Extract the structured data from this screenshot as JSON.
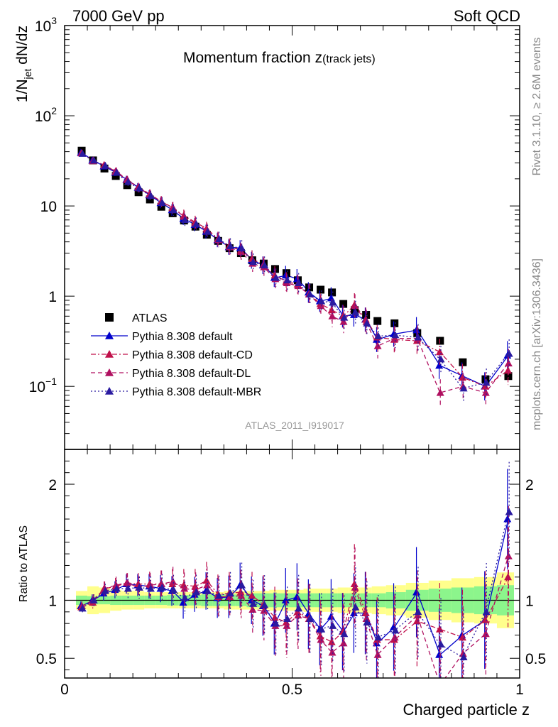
{
  "header": {
    "left": "7000 GeV pp",
    "right": "Soft QCD"
  },
  "side": {
    "rivet": "Rivet 3.1.10, ≥ 2.6M events",
    "mcplots": "mcplots.cern.ch [arXiv:1306.3436]"
  },
  "chart_data": [
    {
      "type": "scatter",
      "panel": "main",
      "title": "Momentum fraction z(track jets)",
      "title_main": "Momentum fraction z",
      "title_sub": "(track jets)",
      "ylabel": "1/N_jet dN/dz",
      "ylabel_parts": {
        "a": "1/N",
        "sub": "jet",
        "b": " dN/dz"
      },
      "yscale": "log",
      "xlim": [
        0,
        1
      ],
      "ylim": [
        0.02,
        1000
      ],
      "yticks_major": [
        {
          "value": 1000,
          "base": "10",
          "exp": "3"
        },
        {
          "value": 100,
          "base": "10",
          "exp": "2"
        },
        {
          "value": 10,
          "base": "10",
          "exp": ""
        },
        {
          "value": 1,
          "base": "1",
          "exp": ""
        },
        {
          "value": 0.1,
          "base": "10",
          "exp": "−1"
        }
      ],
      "watermark": "ATLAS_2011_I919017",
      "legend_position": "lower-left",
      "x": [
        0.0375,
        0.0625,
        0.0875,
        0.1125,
        0.1375,
        0.1625,
        0.1875,
        0.2125,
        0.2375,
        0.2625,
        0.2875,
        0.3125,
        0.3375,
        0.3625,
        0.3875,
        0.4125,
        0.4375,
        0.4625,
        0.4875,
        0.5125,
        0.5375,
        0.5625,
        0.5875,
        0.6125,
        0.6375,
        0.6625,
        0.6875,
        0.725,
        0.775,
        0.825,
        0.875,
        0.925,
        0.975
      ],
      "series": [
        {
          "name": "ATLAS",
          "color": "#000000",
          "marker": "square",
          "line": "none",
          "values": [
            41,
            32,
            26,
            21.5,
            17,
            14.2,
            11.8,
            9.8,
            8.3,
            6.9,
            5.9,
            4.8,
            4.1,
            3.4,
            3.0,
            2.5,
            2.3,
            2.0,
            1.8,
            1.5,
            1.25,
            1.18,
            1.1,
            0.82,
            0.7,
            0.62,
            0.53,
            0.5,
            0.39,
            0.32,
            0.185,
            0.12,
            0.13
          ]
        },
        {
          "name": "Pythia 8.308 default",
          "color": "#0000cc",
          "marker": "triangle",
          "line": "solid",
          "values": [
            39,
            32,
            27.5,
            23.5,
            19.5,
            16,
            13.2,
            10.8,
            9.0,
            7.2,
            6.2,
            5.2,
            4.2,
            3.5,
            3.4,
            2.5,
            2.2,
            1.6,
            1.7,
            1.55,
            1.1,
            0.88,
            0.95,
            0.6,
            0.62,
            0.55,
            0.33,
            0.38,
            0.42,
            0.17,
            0.13,
            0.1,
            0.22
          ]
        },
        {
          "name": "Pythia 8.308 default-CD",
          "color": "#c0104a",
          "marker": "triangle",
          "line": "dashdot",
          "values": [
            38.5,
            31.5,
            28.5,
            24,
            19.5,
            16.2,
            13.5,
            11.2,
            9.5,
            7.8,
            6.6,
            5.6,
            4.3,
            3.6,
            3.2,
            2.6,
            2.2,
            1.7,
            1.45,
            1.35,
            1.05,
            0.82,
            0.7,
            0.6,
            0.8,
            0.55,
            0.35,
            0.33,
            0.32,
            0.24,
            0.125,
            0.1,
            0.15
          ]
        },
        {
          "name": "Pythia 8.308 default-DL",
          "color": "#b01060",
          "marker": "triangle",
          "line": "dashed",
          "values": [
            38.5,
            32,
            28,
            24.5,
            19.5,
            15.8,
            13.4,
            11.2,
            9.6,
            7.6,
            6.4,
            5.4,
            4.2,
            3.5,
            3.1,
            2.3,
            2.1,
            1.55,
            1.4,
            1.3,
            1.05,
            0.78,
            0.6,
            0.52,
            0.78,
            0.52,
            0.28,
            0.34,
            0.34,
            0.085,
            0.1,
            0.085,
            0.18
          ]
        },
        {
          "name": "Pythia 8.308 default-MBR",
          "color": "#2a1aa0",
          "marker": "triangle",
          "line": "dotted",
          "values": [
            38,
            32,
            28,
            23.5,
            18.5,
            15.8,
            13.0,
            10.9,
            9.0,
            7.0,
            6.3,
            5.2,
            4.3,
            3.6,
            3.4,
            2.4,
            2.2,
            1.6,
            1.5,
            1.4,
            1.05,
            0.88,
            0.85,
            0.58,
            0.66,
            0.5,
            0.36,
            0.37,
            0.35,
            0.2,
            0.095,
            0.11,
            0.23
          ]
        }
      ]
    },
    {
      "type": "scatter",
      "panel": "ratio",
      "ylabel": "Ratio to ATLAS",
      "xlabel": "Charged particle z",
      "xlim": [
        0,
        1
      ],
      "ylim": [
        0.33,
        2.3
      ],
      "yticks_major": [
        0.5,
        1,
        2
      ],
      "ytick_labels": [
        "0.5",
        "1",
        "2"
      ],
      "xticks_major": [
        0,
        0.5,
        1
      ],
      "xtick_labels": [
        "0",
        "0.5",
        "1"
      ],
      "reference_line": 1,
      "band_colors": {
        "inner": "#8cf58c",
        "outer": "#ffff8c"
      },
      "data_band_inner": [
        0.04,
        0.035,
        0.035,
        0.04,
        0.04,
        0.04,
        0.04,
        0.04,
        0.045,
        0.045,
        0.045,
        0.05,
        0.05,
        0.05,
        0.05,
        0.06,
        0.06,
        0.06,
        0.06,
        0.06,
        0.06,
        0.06,
        0.06,
        0.06,
        0.06,
        0.06,
        0.06,
        0.07,
        0.09,
        0.1,
        0.11,
        0.12,
        0.13
      ],
      "data_band_outer": [
        0.08,
        0.12,
        0.11,
        0.09,
        0.08,
        0.08,
        0.07,
        0.07,
        0.07,
        0.07,
        0.07,
        0.07,
        0.07,
        0.08,
        0.08,
        0.08,
        0.08,
        0.09,
        0.09,
        0.09,
        0.1,
        0.1,
        0.1,
        0.11,
        0.11,
        0.11,
        0.12,
        0.13,
        0.15,
        0.17,
        0.19,
        0.2,
        0.24
      ],
      "series": [
        {
          "name": "Pythia 8.308 default",
          "values": [
            0.95,
            1.0,
            1.06,
            1.09,
            1.14,
            1.13,
            1.12,
            1.1,
            1.08,
            0.98,
            1.05,
            1.08,
            1.02,
            1.03,
            1.13,
            1.0,
            0.95,
            0.8,
            1.0,
            1.03,
            0.88,
            0.75,
            0.86,
            0.73,
            0.89,
            0.89,
            0.63,
            0.77,
            1.07,
            0.53,
            0.7,
            0.83,
            1.7
          ]
        },
        {
          "name": "Pythia 8.308 default-CD",
          "values": [
            0.94,
            0.98,
            1.1,
            1.12,
            1.15,
            1.14,
            1.14,
            1.14,
            1.14,
            1.13,
            1.12,
            1.17,
            1.05,
            1.06,
            1.07,
            1.04,
            0.96,
            0.85,
            0.81,
            0.9,
            0.84,
            0.69,
            0.64,
            0.73,
            1.14,
            0.89,
            0.66,
            0.66,
            0.82,
            0.75,
            0.68,
            0.83,
            1.2
          ]
        },
        {
          "name": "Pythia 8.308 default-DL",
          "values": [
            0.95,
            1.0,
            1.1,
            1.13,
            1.15,
            1.11,
            1.13,
            1.14,
            1.16,
            1.1,
            1.09,
            1.13,
            1.03,
            1.03,
            1.04,
            0.92,
            0.91,
            0.78,
            0.78,
            0.87,
            0.84,
            0.66,
            0.55,
            0.63,
            1.11,
            0.84,
            0.53,
            0.68,
            0.87,
            0.27,
            0.54,
            0.71,
            1.38
          ]
        },
        {
          "name": "Pythia 8.308 default-MBR",
          "values": [
            0.93,
            1.0,
            1.08,
            1.1,
            1.1,
            1.11,
            1.1,
            1.11,
            1.09,
            1.02,
            1.07,
            1.08,
            1.04,
            1.06,
            1.13,
            0.97,
            0.96,
            0.8,
            0.84,
            0.93,
            0.84,
            0.75,
            0.78,
            0.71,
            0.94,
            0.81,
            0.68,
            0.74,
            0.9,
            0.62,
            0.51,
            0.9,
            1.76
          ]
        }
      ]
    }
  ]
}
